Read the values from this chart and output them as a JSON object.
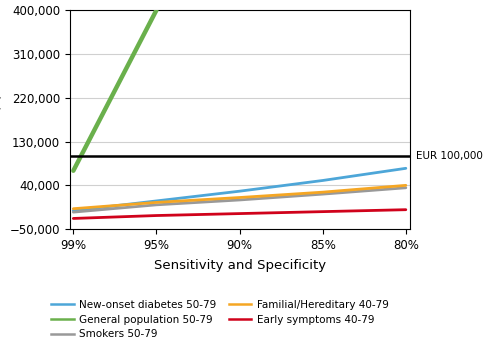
{
  "x_positions": [
    0,
    1,
    2,
    3,
    4
  ],
  "x_labels": [
    "99%",
    "95%",
    "90%",
    "85%",
    "80%"
  ],
  "xlabel": "Sensitivity and Specificity",
  "ylim": [
    -50000,
    400000
  ],
  "yticks": [
    -50000,
    40000,
    130000,
    220000,
    310000,
    400000
  ],
  "wtp_line": 100000,
  "wtp_label": "EUR 100,000",
  "lines": [
    {
      "label": "New-onset diabetes 50-79",
      "color": "#4da6d8",
      "linewidth": 2.0,
      "x": [
        0,
        1,
        2,
        3,
        4
      ],
      "y": [
        -12000,
        8000,
        28000,
        50000,
        75000
      ]
    },
    {
      "label": "General population 50-79",
      "color": "#6ab04c",
      "linewidth": 3.2,
      "x": [
        0,
        1
      ],
      "y": [
        70000,
        400000
      ]
    },
    {
      "label": "Smokers 50-79",
      "color": "#999999",
      "linewidth": 2.0,
      "x": [
        0,
        1,
        2,
        3,
        4
      ],
      "y": [
        -15000,
        0,
        10000,
        22000,
        35000
      ]
    },
    {
      "label": "Familial/Hereditary 40-79",
      "color": "#f5a623",
      "linewidth": 2.0,
      "x": [
        0,
        1,
        2,
        3,
        4
      ],
      "y": [
        -8000,
        5000,
        15000,
        26000,
        40000
      ]
    },
    {
      "label": "Early symptoms 40-79",
      "color": "#d0021b",
      "linewidth": 2.0,
      "x": [
        0,
        1,
        2,
        3,
        4
      ],
      "y": [
        -28000,
        -22000,
        -18000,
        -14000,
        -10000
      ]
    }
  ],
  "background_color": "#ffffff",
  "grid_color": "#d0d0d0",
  "border_color": "#000000",
  "figsize": [
    5.0,
    3.37
  ],
  "dpi": 100
}
